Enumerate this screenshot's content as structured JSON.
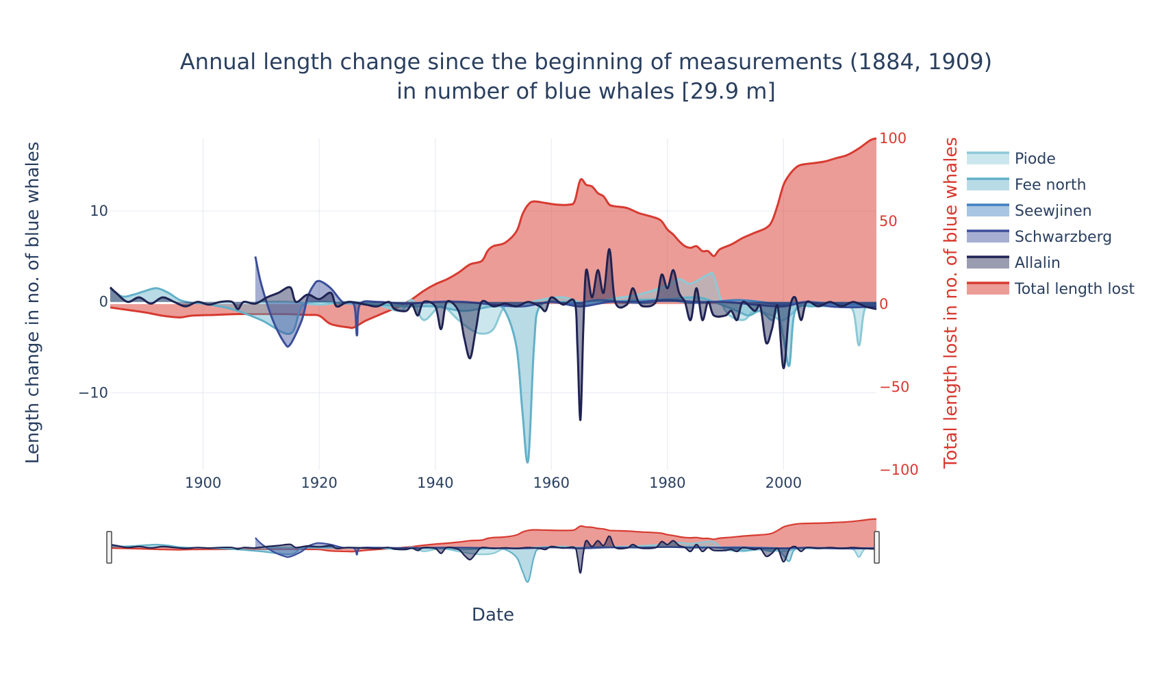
{
  "chart_data": {
    "type": "area",
    "title_line1": "Annual length change since the beginning of measurements (1884, 1909)",
    "title_line2": "in number of blue whales [29.9 m]",
    "xlabel": "Date",
    "ylabel_left": "Length change in no. of blue whales",
    "ylabel_right": "Total length lost in no. of blue whales",
    "x_range": [
      1884,
      2016
    ],
    "y_left_range": [
      -18.5,
      18
    ],
    "y_right_range": [
      -100,
      100
    ],
    "x_ticks": [
      1900,
      1920,
      1940,
      1960,
      1980,
      2000
    ],
    "y_left_ticks": [
      -10,
      0,
      10
    ],
    "y_right_ticks": [
      -100,
      -50,
      0,
      50,
      100
    ],
    "grid": true,
    "legend_position": "right",
    "rangeslider": true,
    "series": [
      {
        "name": "Piode",
        "axis": "left",
        "color": "#8cc9d6",
        "points": [
          [
            1909,
            0
          ],
          [
            1915,
            0
          ],
          [
            1920,
            -0.3
          ],
          [
            1925,
            0
          ],
          [
            1930,
            -0.3
          ],
          [
            1934,
            -1
          ],
          [
            1936,
            0.2
          ],
          [
            1938,
            -2
          ],
          [
            1941,
            -0.5
          ],
          [
            1944,
            -2
          ],
          [
            1946,
            -3
          ],
          [
            1948,
            -3.5
          ],
          [
            1950,
            -3
          ],
          [
            1952,
            -0.5
          ],
          [
            1955,
            -0.3
          ],
          [
            1958,
            0.2
          ],
          [
            1962,
            0.5
          ],
          [
            1966,
            -0.2
          ],
          [
            1970,
            0.3
          ],
          [
            1975,
            0.8
          ],
          [
            1980,
            1.8
          ],
          [
            1982,
            2.5
          ],
          [
            1984,
            2
          ],
          [
            1987,
            3
          ],
          [
            1988,
            2.8
          ],
          [
            1990,
            -1
          ],
          [
            1993,
            -2
          ],
          [
            1995,
            -1
          ],
          [
            1998,
            -1.5
          ],
          [
            2000,
            -2
          ],
          [
            2003,
            -0.5
          ],
          [
            2006,
            -0.3
          ],
          [
            2010,
            -0.5
          ],
          [
            2012,
            -1
          ],
          [
            2013,
            -4.8
          ],
          [
            2014,
            -0.8
          ],
          [
            2016,
            -0.5
          ]
        ]
      },
      {
        "name": "Fee north",
        "axis": "left",
        "color": "#62b0c8",
        "points": [
          [
            1884,
            1.5
          ],
          [
            1886,
            0.6
          ],
          [
            1888,
            0.8
          ],
          [
            1890,
            1.2
          ],
          [
            1892,
            1.5
          ],
          [
            1894,
            1
          ],
          [
            1896,
            0.2
          ],
          [
            1898,
            -0.1
          ],
          [
            1900,
            -0.2
          ],
          [
            1905,
            -0.8
          ],
          [
            1910,
            -2
          ],
          [
            1915,
            -3.5
          ],
          [
            1917,
            -0.5
          ],
          [
            1920,
            0
          ],
          [
            1925,
            -0.2
          ],
          [
            1930,
            -0.3
          ],
          [
            1935,
            -0.5
          ],
          [
            1940,
            -0.5
          ],
          [
            1945,
            -1
          ],
          [
            1950,
            -0.5
          ],
          [
            1952,
            -1
          ],
          [
            1954,
            -5
          ],
          [
            1955,
            -12
          ],
          [
            1956,
            -17.5
          ],
          [
            1957,
            -5
          ],
          [
            1958,
            -0.5
          ],
          [
            1962,
            0
          ],
          [
            1966,
            -0.3
          ],
          [
            1970,
            0
          ],
          [
            1975,
            0.2
          ],
          [
            1980,
            0.3
          ],
          [
            1985,
            0.5
          ],
          [
            1988,
            0
          ],
          [
            1992,
            -1
          ],
          [
            1994,
            -1.5
          ],
          [
            1996,
            -1
          ],
          [
            1998,
            -2
          ],
          [
            1999,
            -1
          ],
          [
            2000,
            -4
          ],
          [
            2001,
            -7
          ],
          [
            2002,
            -1
          ],
          [
            2005,
            -0.5
          ],
          [
            2010,
            -0.5
          ],
          [
            2016,
            -0.5
          ]
        ]
      },
      {
        "name": "Seewjinen",
        "axis": "left",
        "color": "#3f7fbf",
        "points": [
          [
            1960,
            0
          ],
          [
            1964,
            -0.2
          ],
          [
            1968,
            0.2
          ],
          [
            1972,
            0
          ],
          [
            1976,
            -0.1
          ],
          [
            1980,
            0.2
          ],
          [
            1984,
            -0.1
          ],
          [
            1988,
            0
          ],
          [
            1992,
            0.2
          ],
          [
            1996,
            0
          ],
          [
            2000,
            -0.3
          ],
          [
            2004,
            0
          ],
          [
            2008,
            -0.2
          ],
          [
            2012,
            -0.3
          ],
          [
            2016,
            -0.2
          ]
        ]
      },
      {
        "name": "Schwarzberg",
        "axis": "left",
        "color": "#3a4d9a",
        "points": [
          [
            1909,
            5
          ],
          [
            1910,
            2
          ],
          [
            1912,
            -2
          ],
          [
            1914,
            -4.5
          ],
          [
            1915,
            -4.7
          ],
          [
            1917,
            -2
          ],
          [
            1918,
            0.5
          ],
          [
            1919,
            1.8
          ],
          [
            1920,
            2.3
          ],
          [
            1922,
            1.5
          ],
          [
            1924,
            0
          ],
          [
            1926,
            -0.3
          ],
          [
            1926.5,
            -3.7
          ],
          [
            1927,
            -0.3
          ],
          [
            1930,
            0
          ],
          [
            1935,
            -0.2
          ],
          [
            1940,
            0
          ],
          [
            1945,
            0
          ],
          [
            1950,
            -0.3
          ],
          [
            1955,
            -0.5
          ],
          [
            1960,
            0
          ],
          [
            1965,
            -0.5
          ],
          [
            1970,
            0
          ],
          [
            1975,
            0
          ],
          [
            1980,
            0.2
          ],
          [
            1985,
            0
          ],
          [
            1990,
            0
          ],
          [
            1995,
            -0.3
          ],
          [
            2000,
            -0.5
          ],
          [
            2004,
            0
          ],
          [
            2008,
            -0.5
          ],
          [
            2012,
            -0.6
          ],
          [
            2016,
            -0.5
          ]
        ]
      },
      {
        "name": "Allalin",
        "axis": "left",
        "color": "#1f2352",
        "points": [
          [
            1884,
            1.6
          ],
          [
            1885,
            1
          ],
          [
            1887,
            0
          ],
          [
            1889,
            0.5
          ],
          [
            1891,
            -0.2
          ],
          [
            1893,
            0.5
          ],
          [
            1895,
            0
          ],
          [
            1897,
            -0.5
          ],
          [
            1899,
            0
          ],
          [
            1901,
            -0.3
          ],
          [
            1903,
            0
          ],
          [
            1905,
            0
          ],
          [
            1906,
            -0.8
          ],
          [
            1907,
            0
          ],
          [
            1909,
            -0.2
          ],
          [
            1911,
            0.5
          ],
          [
            1913,
            1
          ],
          [
            1915,
            1.6
          ],
          [
            1916,
            0
          ],
          [
            1918,
            0.8
          ],
          [
            1920,
            0.3
          ],
          [
            1922,
            1
          ],
          [
            1923,
            -0.5
          ],
          [
            1925,
            0
          ],
          [
            1928,
            -0.3
          ],
          [
            1930,
            -0.5
          ],
          [
            1932,
            0
          ],
          [
            1933,
            -0.8
          ],
          [
            1935,
            -1
          ],
          [
            1936,
            -0.3
          ],
          [
            1937,
            -1.5
          ],
          [
            1938,
            0
          ],
          [
            1940,
            -0.5
          ],
          [
            1941,
            -3
          ],
          [
            1942,
            0
          ],
          [
            1944,
            -1
          ],
          [
            1945,
            -4
          ],
          [
            1946,
            -6.2
          ],
          [
            1947,
            -3
          ],
          [
            1948,
            0
          ],
          [
            1950,
            -0.5
          ],
          [
            1952,
            -0.2
          ],
          [
            1954,
            -0.5
          ],
          [
            1956,
            0
          ],
          [
            1958,
            -0.5
          ],
          [
            1959,
            -1
          ],
          [
            1960,
            0.5
          ],
          [
            1962,
            -0.3
          ],
          [
            1964,
            0
          ],
          [
            1964.5,
            -5
          ],
          [
            1965,
            -13
          ],
          [
            1965.5,
            -3
          ],
          [
            1966,
            3.5
          ],
          [
            1967,
            0.5
          ],
          [
            1968,
            3.5
          ],
          [
            1969,
            1
          ],
          [
            1970,
            5.8
          ],
          [
            1971,
            0
          ],
          [
            1973,
            -0.3
          ],
          [
            1974,
            1.5
          ],
          [
            1975,
            0
          ],
          [
            1976,
            -0.5
          ],
          [
            1978,
            0
          ],
          [
            1979,
            3
          ],
          [
            1980,
            1.5
          ],
          [
            1981,
            3.5
          ],
          [
            1982,
            1
          ],
          [
            1983,
            0
          ],
          [
            1984,
            -2
          ],
          [
            1985,
            1.5
          ],
          [
            1986,
            -2
          ],
          [
            1987,
            0
          ],
          [
            1988,
            -1.5
          ],
          [
            1990,
            -1.5
          ],
          [
            1991,
            -1
          ],
          [
            1992,
            -2
          ],
          [
            1993,
            0
          ],
          [
            1995,
            -1
          ],
          [
            1996,
            -0.5
          ],
          [
            1997,
            -4.5
          ],
          [
            1998,
            -3
          ],
          [
            1999,
            -0.5
          ],
          [
            2000,
            -7.3
          ],
          [
            2001,
            -1
          ],
          [
            2002,
            0.5
          ],
          [
            2003,
            -2
          ],
          [
            2004,
            0
          ],
          [
            2006,
            -0.5
          ],
          [
            2008,
            0
          ],
          [
            2010,
            -0.5
          ],
          [
            2012,
            0
          ],
          [
            2014,
            -0.5
          ],
          [
            2016,
            -0.8
          ]
        ]
      },
      {
        "name": "Total length lost",
        "axis": "right",
        "color": "#d73a30",
        "points": [
          [
            1884,
            -2
          ],
          [
            1890,
            -5
          ],
          [
            1893,
            -7
          ],
          [
            1896,
            -8
          ],
          [
            1898,
            -7
          ],
          [
            1902,
            -6.5
          ],
          [
            1906,
            -6
          ],
          [
            1910,
            -6
          ],
          [
            1914,
            -6
          ],
          [
            1918,
            -6.5
          ],
          [
            1920,
            -7
          ],
          [
            1922,
            -12
          ],
          [
            1925,
            -14
          ],
          [
            1926,
            -14
          ],
          [
            1928,
            -10
          ],
          [
            1930,
            -7
          ],
          [
            1932,
            -4
          ],
          [
            1934,
            -1
          ],
          [
            1936,
            3
          ],
          [
            1938,
            8
          ],
          [
            1940,
            12
          ],
          [
            1942,
            15
          ],
          [
            1944,
            19
          ],
          [
            1946,
            24
          ],
          [
            1948,
            26
          ],
          [
            1949,
            32
          ],
          [
            1950,
            35
          ],
          [
            1952,
            37
          ],
          [
            1954,
            44
          ],
          [
            1955,
            54
          ],
          [
            1956,
            60
          ],
          [
            1957,
            62
          ],
          [
            1959,
            61
          ],
          [
            1961,
            60
          ],
          [
            1963,
            60
          ],
          [
            1964,
            62
          ],
          [
            1965,
            75
          ],
          [
            1966,
            72
          ],
          [
            1967,
            71
          ],
          [
            1968,
            67
          ],
          [
            1969,
            65
          ],
          [
            1970,
            60
          ],
          [
            1971,
            59
          ],
          [
            1973,
            58
          ],
          [
            1975,
            55
          ],
          [
            1976,
            54
          ],
          [
            1978,
            52
          ],
          [
            1979,
            50
          ],
          [
            1980,
            45
          ],
          [
            1981,
            42
          ],
          [
            1982,
            38
          ],
          [
            1983,
            35
          ],
          [
            1984,
            34
          ],
          [
            1985,
            35
          ],
          [
            1986,
            32
          ],
          [
            1987,
            32
          ],
          [
            1988,
            29
          ],
          [
            1989,
            33
          ],
          [
            1991,
            36
          ],
          [
            1993,
            40
          ],
          [
            1995,
            43
          ],
          [
            1997,
            46
          ],
          [
            1998,
            50
          ],
          [
            1999,
            60
          ],
          [
            2000,
            72
          ],
          [
            2001,
            78
          ],
          [
            2002,
            82
          ],
          [
            2003,
            84
          ],
          [
            2005,
            85
          ],
          [
            2007,
            86
          ],
          [
            2009,
            88
          ],
          [
            2011,
            90
          ],
          [
            2013,
            94
          ],
          [
            2015,
            99
          ],
          [
            2016,
            100
          ]
        ]
      }
    ]
  }
}
